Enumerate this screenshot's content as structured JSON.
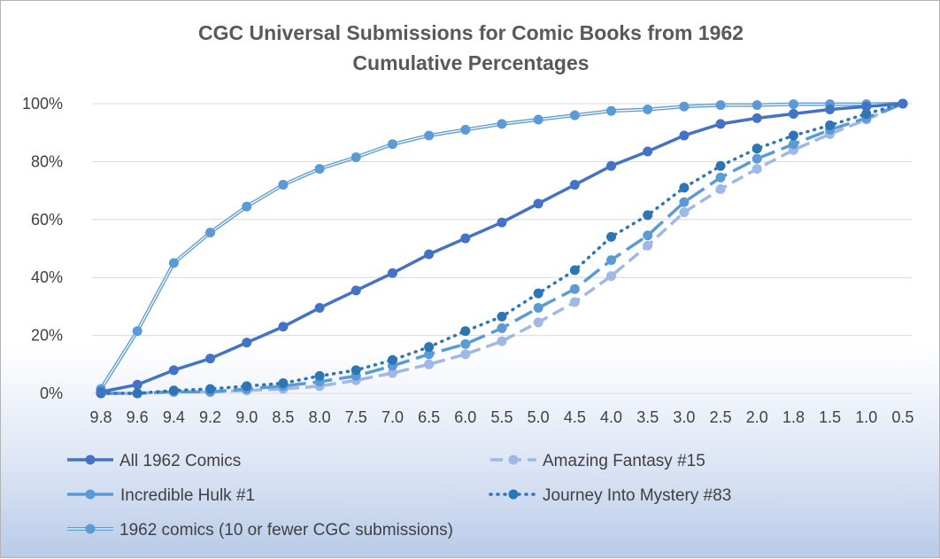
{
  "chart_data": {
    "type": "line",
    "title": "CGC Universal Submissions for Comic Books from 1962",
    "subtitle": "Cumulative Percentages",
    "xlabel": "",
    "ylabel": "",
    "categories": [
      "9.8",
      "9.6",
      "9.4",
      "9.2",
      "9.0",
      "8.5",
      "8.0",
      "7.5",
      "7.0",
      "6.5",
      "6.0",
      "5.5",
      "5.0",
      "4.5",
      "4.0",
      "3.5",
      "3.0",
      "2.5",
      "2.0",
      "1.8",
      "1.5",
      "1.0",
      "0.5"
    ],
    "ylim": [
      0,
      100
    ],
    "y_ticks": [
      "0%",
      "20%",
      "40%",
      "60%",
      "80%",
      "100%"
    ],
    "grid": "horizontal",
    "legend_position": "bottom",
    "series": [
      {
        "name": "All 1962 Comics",
        "color": "#4472c4",
        "style": "solid",
        "values": [
          0.5,
          3,
          8,
          12,
          17.5,
          23,
          29.5,
          35.5,
          41.5,
          48,
          53.5,
          59,
          65.5,
          72,
          78.5,
          83.5,
          89,
          93,
          95,
          96.5,
          98,
          99,
          100
        ]
      },
      {
        "name": "Amazing Fantasy #15",
        "color": "#9fb8e5",
        "style": "dashed",
        "values": [
          0,
          0,
          0.5,
          0.5,
          1,
          1.5,
          2.5,
          4.5,
          7,
          10,
          13.5,
          18,
          24.5,
          31.5,
          40.5,
          51,
          62.5,
          70.5,
          77.5,
          84,
          89.5,
          94.5,
          100
        ]
      },
      {
        "name": "Incredible Hulk #1",
        "color": "#5b9bd5",
        "style": "longdash",
        "values": [
          0,
          0,
          0.5,
          0.5,
          1.5,
          2.5,
          4,
          6,
          9.5,
          13.5,
          17,
          22.5,
          29.5,
          36,
          46,
          54.5,
          66,
          74.5,
          81,
          86,
          91,
          95,
          100
        ]
      },
      {
        "name": "Journey Into Mystery #83",
        "color": "#2e75b6",
        "style": "dotted",
        "values": [
          0,
          0,
          1,
          1.5,
          2.5,
          3.5,
          6,
          8,
          11.5,
          16,
          21.5,
          26.5,
          34.5,
          42.5,
          54,
          61.5,
          71,
          78.5,
          84.5,
          89,
          92.5,
          96.5,
          100
        ]
      },
      {
        "name": "1962 comics (10 or fewer CGC submissions)",
        "color": "#5b9bd5",
        "style": "double",
        "values": [
          1.5,
          21.5,
          45,
          55.5,
          64.5,
          72,
          77.5,
          81.5,
          86,
          89,
          91,
          93,
          94.5,
          96,
          97.5,
          98,
          99,
          99.5,
          99.5,
          99.8,
          99.8,
          99.8,
          100
        ]
      }
    ]
  }
}
